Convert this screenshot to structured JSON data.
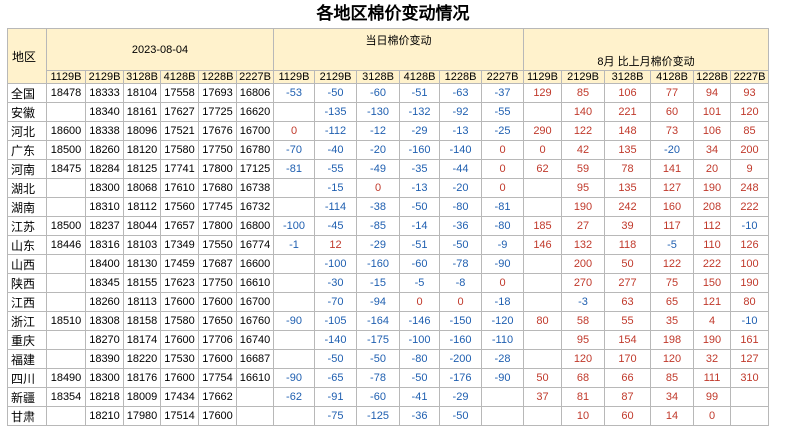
{
  "title": "各地区棉价变动情况",
  "header": {
    "region_label": "地区",
    "group_date": "2023-08-04",
    "group_today": "当日棉价变动",
    "group_month": "8月 比上月棉价变动"
  },
  "codes": [
    "1129B",
    "2129B",
    "3128B",
    "4128B",
    "1228B",
    "2227B"
  ],
  "rows": [
    {
      "region": "全国",
      "prices": [
        "18478",
        "18333",
        "18104",
        "17558",
        "17693",
        "16806"
      ],
      "today": [
        "-53",
        "-50",
        "-60",
        "-51",
        "-63",
        "-37"
      ],
      "month": [
        "129",
        "85",
        "106",
        "77",
        "94",
        "93"
      ]
    },
    {
      "region": "安徽",
      "prices": [
        "",
        "18340",
        "18161",
        "17627",
        "17725",
        "16620"
      ],
      "today": [
        "",
        "-135",
        "-130",
        "-132",
        "-92",
        "-55"
      ],
      "month": [
        "",
        "140",
        "221",
        "60",
        "101",
        "120"
      ]
    },
    {
      "region": "河北",
      "prices": [
        "18600",
        "18338",
        "18096",
        "17521",
        "17676",
        "16700"
      ],
      "today": [
        "0",
        "-112",
        "-12",
        "-29",
        "-13",
        "-25"
      ],
      "month": [
        "290",
        "122",
        "148",
        "73",
        "106",
        "85"
      ]
    },
    {
      "region": "广东",
      "prices": [
        "18500",
        "18260",
        "18120",
        "17580",
        "17750",
        "16780"
      ],
      "today": [
        "-70",
        "-40",
        "-20",
        "-160",
        "-140",
        "0"
      ],
      "month": [
        "0",
        "42",
        "135",
        "-20",
        "34",
        "200"
      ]
    },
    {
      "region": "河南",
      "prices": [
        "18475",
        "18284",
        "18125",
        "17741",
        "17800",
        "17125"
      ],
      "today": [
        "-81",
        "-55",
        "-49",
        "-35",
        "-44",
        "0"
      ],
      "month": [
        "62",
        "59",
        "78",
        "141",
        "20",
        "9"
      ]
    },
    {
      "region": "湖北",
      "prices": [
        "",
        "18300",
        "18068",
        "17610",
        "17680",
        "16738"
      ],
      "today": [
        "",
        "-15",
        "0",
        "-13",
        "-20",
        "0"
      ],
      "month": [
        "",
        "95",
        "135",
        "127",
        "190",
        "248"
      ]
    },
    {
      "region": "湖南",
      "prices": [
        "",
        "18310",
        "18112",
        "17560",
        "17745",
        "16732"
      ],
      "today": [
        "",
        "-114",
        "-38",
        "-50",
        "-80",
        "-81"
      ],
      "month": [
        "",
        "190",
        "242",
        "160",
        "208",
        "222"
      ]
    },
    {
      "region": "江苏",
      "prices": [
        "18500",
        "18237",
        "18044",
        "17657",
        "17800",
        "16800"
      ],
      "today": [
        "-100",
        "-45",
        "-85",
        "-14",
        "-36",
        "-80"
      ],
      "month": [
        "185",
        "27",
        "39",
        "117",
        "112",
        "-10"
      ]
    },
    {
      "region": "山东",
      "prices": [
        "18446",
        "18316",
        "18103",
        "17349",
        "17550",
        "16774"
      ],
      "today": [
        "-1",
        "12",
        "-29",
        "-51",
        "-50",
        "-9"
      ],
      "month": [
        "146",
        "132",
        "118",
        "-5",
        "110",
        "126"
      ]
    },
    {
      "region": "山西",
      "prices": [
        "",
        "18400",
        "18130",
        "17459",
        "17687",
        "16600"
      ],
      "today": [
        "",
        "-100",
        "-160",
        "-60",
        "-78",
        "-90"
      ],
      "month": [
        "",
        "200",
        "50",
        "122",
        "222",
        "100"
      ]
    },
    {
      "region": "陕西",
      "prices": [
        "",
        "18345",
        "18155",
        "17623",
        "17750",
        "16610"
      ],
      "today": [
        "",
        "-30",
        "-15",
        "-5",
        "-8",
        "0"
      ],
      "month": [
        "",
        "270",
        "277",
        "75",
        "150",
        "190"
      ]
    },
    {
      "region": "江西",
      "prices": [
        "",
        "18260",
        "18113",
        "17600",
        "17600",
        "16700"
      ],
      "today": [
        "",
        "-70",
        "-94",
        "0",
        "0",
        "-18"
      ],
      "month": [
        "",
        "-3",
        "63",
        "65",
        "121",
        "80"
      ]
    },
    {
      "region": "浙江",
      "prices": [
        "18510",
        "18308",
        "18158",
        "17580",
        "17650",
        "16760"
      ],
      "today": [
        "-90",
        "-105",
        "-164",
        "-146",
        "-150",
        "-120"
      ],
      "month": [
        "80",
        "58",
        "55",
        "35",
        "4",
        "-10"
      ]
    },
    {
      "region": "重庆",
      "prices": [
        "",
        "18270",
        "18174",
        "17600",
        "17706",
        "16740"
      ],
      "today": [
        "",
        "-140",
        "-175",
        "-100",
        "-160",
        "-110"
      ],
      "month": [
        "",
        "95",
        "154",
        "198",
        "190",
        "161"
      ]
    },
    {
      "region": "福建",
      "prices": [
        "",
        "18390",
        "18220",
        "17530",
        "17600",
        "16687"
      ],
      "today": [
        "",
        "-50",
        "-50",
        "-80",
        "-200",
        "-28"
      ],
      "month": [
        "",
        "120",
        "170",
        "120",
        "32",
        "127"
      ]
    },
    {
      "region": "四川",
      "prices": [
        "18490",
        "18300",
        "18176",
        "17600",
        "17754",
        "16610"
      ],
      "today": [
        "-90",
        "-65",
        "-78",
        "-50",
        "-176",
        "-90"
      ],
      "month": [
        "50",
        "68",
        "66",
        "85",
        "111",
        "310"
      ]
    },
    {
      "region": "新疆",
      "prices": [
        "18354",
        "18218",
        "18009",
        "17434",
        "17662",
        ""
      ],
      "today": [
        "-62",
        "-91",
        "-60",
        "-41",
        "-29",
        ""
      ],
      "month": [
        "37",
        "81",
        "87",
        "34",
        "99",
        ""
      ]
    },
    {
      "region": "甘肃",
      "prices": [
        "",
        "18210",
        "17980",
        "17514",
        "17600",
        ""
      ],
      "today": [
        "",
        "-75",
        "-125",
        "-36",
        "-50",
        ""
      ],
      "month": [
        "",
        "10",
        "60",
        "14",
        "0",
        ""
      ]
    }
  ]
}
